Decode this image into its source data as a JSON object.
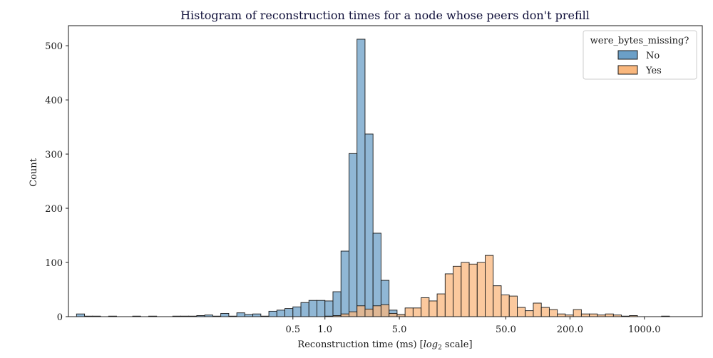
{
  "chart_data": {
    "type": "bar",
    "title": "Histogram of reconstruction times for a node whose peers don't prefill",
    "xlabel_pre": "Reconstruction time (ms) [",
    "xlabel_log": "log",
    "xlabel_sub": "2",
    "xlabel_post": " scale]",
    "ylabel": "Count",
    "x_scale": "log2",
    "xlim": [
      0.0039,
      3500
    ],
    "ylim": [
      0,
      537
    ],
    "x_ticks": [
      {
        "value": 0.5,
        "label": "0.5"
      },
      {
        "value": 1.0,
        "label": "1.0"
      },
      {
        "value": 5.0,
        "label": "5.0"
      },
      {
        "value": 50.0,
        "label": "50.0"
      },
      {
        "value": 200.0,
        "label": "200.0"
      },
      {
        "value": 1000.0,
        "label": "1000.0"
      }
    ],
    "y_ticks": [
      {
        "value": 0,
        "label": "0"
      },
      {
        "value": 100,
        "label": "100"
      },
      {
        "value": 200,
        "label": "200"
      },
      {
        "value": 300,
        "label": "300"
      },
      {
        "value": 400,
        "label": "400"
      },
      {
        "value": 500,
        "label": "500"
      }
    ],
    "bin_edges_log2": [
      -7.75,
      -7.5,
      -7.25,
      -7.0,
      -6.75,
      -6.5,
      -6.25,
      -6.0,
      -5.75,
      -5.5,
      -5.25,
      -5.0,
      -4.75,
      -4.5,
      -4.25,
      -4.0,
      -3.75,
      -3.5,
      -3.25,
      -3.0,
      -2.75,
      -2.5,
      -2.25,
      -2.0,
      -1.75,
      -1.5,
      -1.25,
      -1.0,
      -0.75,
      -0.5,
      -0.25,
      0.0,
      0.25,
      0.5,
      0.75,
      1.0,
      1.25,
      1.5,
      1.75,
      2.0,
      2.25,
      2.5,
      2.75,
      3.0,
      3.25,
      3.5,
      3.75,
      4.0,
      4.25,
      4.5,
      4.75,
      5.0,
      5.25,
      5.5,
      5.75,
      6.0,
      6.25,
      6.5,
      6.75,
      7.0,
      7.25,
      7.5,
      7.75,
      8.0,
      8.25,
      8.5,
      8.75,
      9.0,
      9.25,
      9.5,
      9.75,
      10.0,
      10.25,
      10.5,
      10.75,
      11.0
    ],
    "legend": {
      "title": "were_bytes_missing?",
      "position": "top-right"
    },
    "series": [
      {
        "name": "No",
        "color": "#6b9fc7",
        "edge": "#1a1a1a",
        "values": [
          5,
          1,
          1,
          0,
          1,
          0,
          0,
          1,
          0,
          1,
          0,
          0,
          1,
          1,
          1,
          2,
          3,
          1,
          6,
          1,
          7,
          4,
          5,
          1,
          10,
          12,
          15,
          18,
          26,
          30,
          30,
          29,
          46,
          121,
          301,
          512,
          337,
          154,
          67,
          12,
          4,
          0,
          0,
          0,
          0,
          0,
          0,
          0,
          0,
          0,
          0,
          0,
          0,
          0,
          0,
          0,
          0,
          0,
          0,
          0,
          0,
          0,
          0,
          0,
          0,
          0,
          0,
          0,
          0,
          0,
          0,
          0,
          0,
          1,
          0
        ]
      },
      {
        "name": "Yes",
        "color": "#f9b77d",
        "edge": "#1a1a1a",
        "values": [
          0,
          0,
          0,
          0,
          0,
          0,
          0,
          0,
          0,
          0,
          0,
          0,
          0,
          0,
          0,
          0,
          0,
          0,
          0,
          0,
          0,
          0,
          0,
          0,
          0,
          0,
          0,
          0,
          0,
          0,
          0,
          1,
          2,
          5,
          9,
          20,
          14,
          20,
          22,
          6,
          4,
          16,
          16,
          35,
          29,
          42,
          79,
          93,
          100,
          97,
          100,
          113,
          57,
          40,
          38,
          17,
          11,
          25,
          17,
          13,
          5,
          3,
          13,
          5,
          5,
          3,
          5,
          3,
          1,
          2,
          0,
          0,
          0,
          0,
          0
        ]
      }
    ]
  }
}
